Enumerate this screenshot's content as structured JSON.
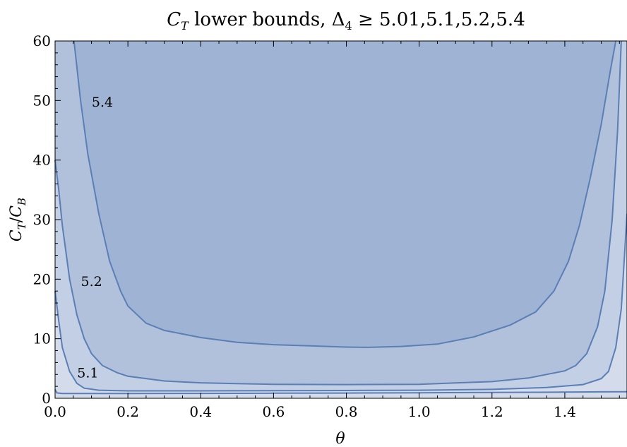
{
  "chart_data": {
    "type": "area",
    "title": {
      "prefix": "C",
      "prefix_sub": "T",
      "middle": " lower bounds, Δ",
      "delta_sub": "4",
      "suffix": " ≥ 5.01,5.1,5.2,5.4"
    },
    "xlabel": "θ",
    "ylabel": {
      "a": "C",
      "a_sub": "T",
      "sep": "/",
      "b": "C",
      "b_sub": "B"
    },
    "xlim": [
      0,
      1.5708
    ],
    "ylim": [
      0,
      60
    ],
    "x_ticks": [
      0.0,
      0.2,
      0.4,
      0.6,
      0.8,
      1.0,
      1.2,
      1.4
    ],
    "x_tick_labels": [
      "0.0",
      "0.2",
      "0.4",
      "0.6",
      "0.8",
      "1.0",
      "1.2",
      "1.4"
    ],
    "y_ticks": [
      0,
      10,
      20,
      30,
      40,
      50,
      60
    ],
    "y_tick_labels": [
      "0",
      "10",
      "20",
      "30",
      "40",
      "50",
      "60"
    ],
    "grid": false,
    "colors": {
      "curve": "#5b7fb5",
      "fill": [
        "#d4dcec",
        "#c2cfe5",
        "#b1c1dc",
        "#9fb4d5"
      ]
    },
    "series": [
      {
        "name": "5.01",
        "label_position": [
          0.0,
          0.0
        ],
        "points": [
          [
            0.0,
            1.5
          ],
          [
            0.005,
            0.9
          ],
          [
            0.02,
            0.8
          ],
          [
            0.2,
            0.8
          ],
          [
            0.4,
            0.82
          ],
          [
            0.6,
            0.85
          ],
          [
            0.8,
            0.88
          ],
          [
            1.0,
            0.92
          ],
          [
            1.2,
            0.97
          ],
          [
            1.4,
            1.03
          ],
          [
            1.5,
            1.08
          ],
          [
            1.5708,
            1.1
          ]
        ]
      },
      {
        "name": "5.1",
        "label_position": [
          0.09,
          4.3
        ],
        "points": [
          [
            0.0,
            18.0
          ],
          [
            0.01,
            13.0
          ],
          [
            0.02,
            8.5
          ],
          [
            0.04,
            4.5
          ],
          [
            0.06,
            2.5
          ],
          [
            0.08,
            1.7
          ],
          [
            0.12,
            1.35
          ],
          [
            0.2,
            1.25
          ],
          [
            0.4,
            1.25
          ],
          [
            0.6,
            1.27
          ],
          [
            0.8,
            1.3
          ],
          [
            1.0,
            1.35
          ],
          [
            1.2,
            1.5
          ],
          [
            1.35,
            1.8
          ],
          [
            1.45,
            2.3
          ],
          [
            1.5,
            3.3
          ],
          [
            1.52,
            4.5
          ],
          [
            1.54,
            8.5
          ],
          [
            1.555,
            15.0
          ],
          [
            1.5708,
            31.0
          ]
        ]
      },
      {
        "name": "5.2",
        "label_position": [
          0.1,
          19.7
        ],
        "points": [
          [
            0.0,
            40.0
          ],
          [
            0.01,
            35.0
          ],
          [
            0.02,
            29.0
          ],
          [
            0.04,
            20.0
          ],
          [
            0.06,
            14.0
          ],
          [
            0.08,
            10.0
          ],
          [
            0.1,
            7.5
          ],
          [
            0.13,
            5.5
          ],
          [
            0.17,
            4.3
          ],
          [
            0.2,
            3.7
          ],
          [
            0.3,
            2.9
          ],
          [
            0.4,
            2.6
          ],
          [
            0.5,
            2.45
          ],
          [
            0.6,
            2.35
          ],
          [
            0.8,
            2.3
          ],
          [
            1.0,
            2.35
          ],
          [
            1.2,
            2.8
          ],
          [
            1.3,
            3.4
          ],
          [
            1.4,
            4.6
          ],
          [
            1.43,
            5.5
          ],
          [
            1.46,
            7.5
          ],
          [
            1.49,
            12.0
          ],
          [
            1.51,
            18.0
          ],
          [
            1.53,
            30.0
          ],
          [
            1.545,
            45.0
          ],
          [
            1.555,
            60.0
          ]
        ]
      },
      {
        "name": "5.4",
        "label_position": [
          0.13,
          49.8
        ],
        "points": [
          [
            0.052,
            60.0
          ],
          [
            0.07,
            50.0
          ],
          [
            0.09,
            41.0
          ],
          [
            0.12,
            31.0
          ],
          [
            0.15,
            23.0
          ],
          [
            0.18,
            18.0
          ],
          [
            0.2,
            15.5
          ],
          [
            0.25,
            12.6
          ],
          [
            0.3,
            11.4
          ],
          [
            0.4,
            10.2
          ],
          [
            0.5,
            9.4
          ],
          [
            0.6,
            9.0
          ],
          [
            0.7,
            8.8
          ],
          [
            0.8,
            8.6
          ],
          [
            0.86,
            8.55
          ],
          [
            0.95,
            8.7
          ],
          [
            1.05,
            9.1
          ],
          [
            1.15,
            10.3
          ],
          [
            1.25,
            12.3
          ],
          [
            1.32,
            14.5
          ],
          [
            1.37,
            18.0
          ],
          [
            1.41,
            23.0
          ],
          [
            1.44,
            29.0
          ],
          [
            1.47,
            37.0
          ],
          [
            1.5,
            46.0
          ],
          [
            1.525,
            55.0
          ],
          [
            1.54,
            60.0
          ]
        ]
      }
    ]
  }
}
